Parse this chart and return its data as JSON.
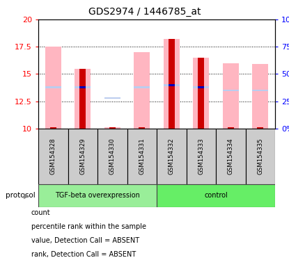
{
  "title": "GDS2974 / 1446785_at",
  "samples": [
    "GSM154328",
    "GSM154329",
    "GSM154330",
    "GSM154331",
    "GSM154332",
    "GSM154333",
    "GSM154334",
    "GSM154335"
  ],
  "ylim_left": [
    10,
    20
  ],
  "ylim_right": [
    0,
    100
  ],
  "yticks_left": [
    10,
    12.5,
    15,
    17.5,
    20
  ],
  "yticks_right": [
    0,
    25,
    50,
    75,
    100
  ],
  "value_absent": [
    17.5,
    15.5,
    10.1,
    17.0,
    18.2,
    16.5,
    16.0,
    15.9
  ],
  "rank_absent": [
    13.8,
    13.8,
    12.8,
    13.8,
    14.0,
    13.8,
    13.5,
    13.5
  ],
  "count_vals": [
    null,
    15.5,
    null,
    null,
    18.2,
    16.5,
    null,
    null
  ],
  "pct_vals": [
    null,
    13.8,
    null,
    null,
    14.0,
    13.8,
    null,
    null
  ],
  "count_color": "#CC0000",
  "percentile_color": "#0000BB",
  "value_absent_color": "#FFB6C1",
  "rank_absent_color": "#BBCCEE",
  "group_label_1": "TGF-beta overexpression",
  "group_label_2": "control",
  "group_color_1": "#99EE99",
  "group_color_2": "#66EE66",
  "protocol_label": "protocol"
}
